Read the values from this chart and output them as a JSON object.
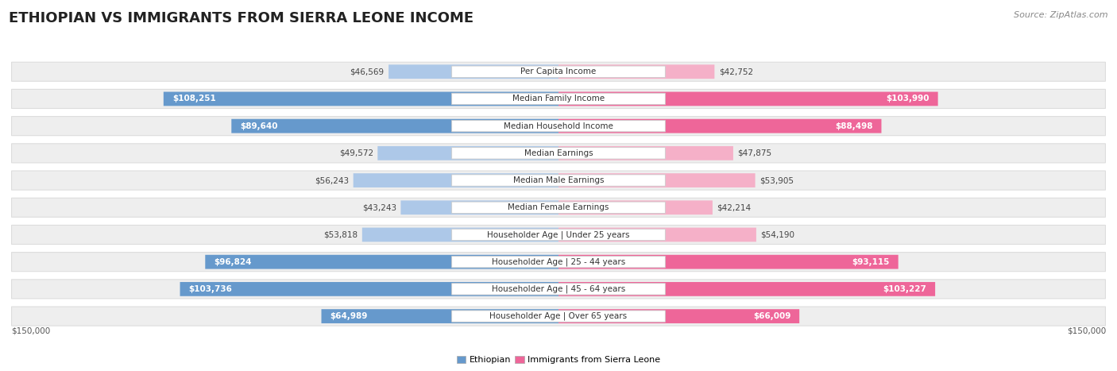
{
  "title": "ETHIOPIAN VS IMMIGRANTS FROM SIERRA LEONE INCOME",
  "source": "Source: ZipAtlas.com",
  "categories": [
    "Per Capita Income",
    "Median Family Income",
    "Median Household Income",
    "Median Earnings",
    "Median Male Earnings",
    "Median Female Earnings",
    "Householder Age | Under 25 years",
    "Householder Age | 25 - 44 years",
    "Householder Age | 45 - 64 years",
    "Householder Age | Over 65 years"
  ],
  "ethiopian_values": [
    46569,
    108251,
    89640,
    49572,
    56243,
    43243,
    53818,
    96824,
    103736,
    64989
  ],
  "sierra_leone_values": [
    42752,
    103990,
    88498,
    47875,
    53905,
    42214,
    54190,
    93115,
    103227,
    66009
  ],
  "max_value": 150000,
  "ethiopian_color_light": "#adc8e8",
  "ethiopian_color_dark": "#6699cc",
  "sierra_leone_color_light": "#f5b0c8",
  "sierra_leone_color_dark": "#ee6699",
  "inside_label_threshold": 60000,
  "row_bg_color": "#eeeeee",
  "row_bg_alt_color": "#e4e4e4",
  "background_color": "#ffffff",
  "title_fontsize": 13,
  "label_fontsize": 7.5,
  "value_fontsize": 7.5,
  "legend_fontsize": 8,
  "source_fontsize": 8
}
